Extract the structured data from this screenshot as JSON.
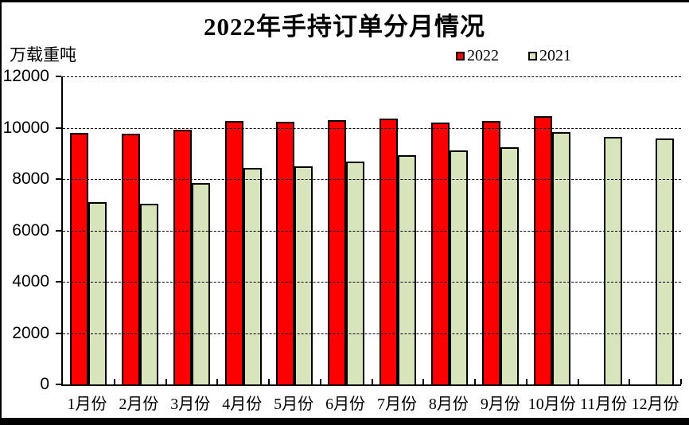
{
  "title": "2022年手持订单分月情况",
  "y_unit_label": "万载重吨",
  "chart_data": {
    "type": "bar",
    "title": "2022年手持订单分月情况",
    "ylabel": "万载重吨",
    "xlabel": "",
    "categories": [
      "1月份",
      "2月份",
      "3月份",
      "4月份",
      "5月份",
      "6月份",
      "7月份",
      "8月份",
      "9月份",
      "10月份",
      "11月份",
      "12月份"
    ],
    "series": [
      {
        "name": "2022",
        "color": "#ff0000",
        "values": [
          9800,
          9780,
          9920,
          10260,
          10240,
          10300,
          10370,
          10200,
          10260,
          10440,
          null,
          null
        ]
      },
      {
        "name": "2021",
        "color": "#d8e4bc",
        "values": [
          7090,
          7040,
          7850,
          8420,
          8490,
          8680,
          8940,
          9130,
          9250,
          9820,
          9640,
          9580
        ]
      }
    ],
    "ylim": [
      0,
      12000
    ],
    "ytick_step": 2000,
    "ytick_labels": [
      "0",
      "2000",
      "4000",
      "6000",
      "8000",
      "10000",
      "12000"
    ],
    "grid": "horizontal-dashed",
    "legend_position": "top-right",
    "bar_outline_color": "#000000"
  }
}
